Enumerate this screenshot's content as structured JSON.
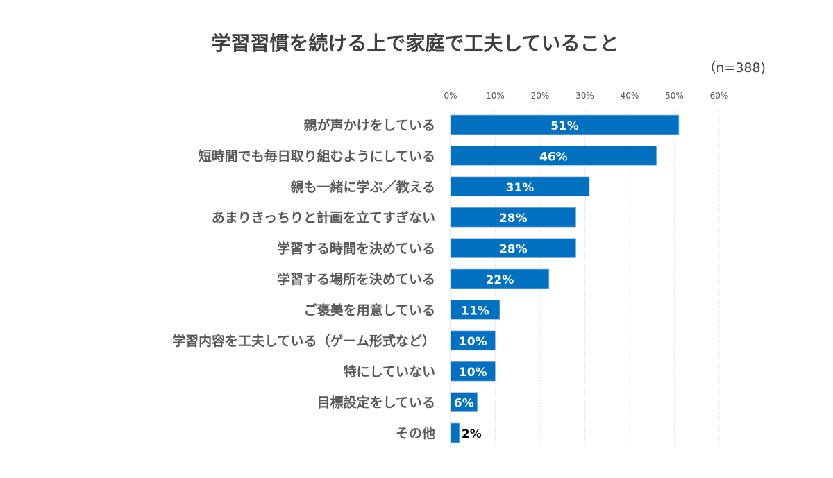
{
  "chart_data": {
    "type": "bar",
    "orientation": "horizontal",
    "title": "学習習慣を続ける上で家庭で工夫していること",
    "subtitle": "（n=388)",
    "categories": [
      "親が声かけをしている",
      "短時間でも毎日取り組むようにしている",
      "親も一緒に学ぶ／教える",
      "あまりきっちりと計画を立てすぎない",
      "学習する時間を決めている",
      "学習する場所を決めている",
      "ご褒美を用意している",
      "学習内容を工夫している（ゲーム形式など）",
      "特にしていない",
      "目標設定をしている",
      "その他"
    ],
    "values": [
      51,
      46,
      31,
      28,
      28,
      22,
      11,
      10,
      10,
      6,
      2
    ],
    "data_labels": [
      "51%",
      "46%",
      "31%",
      "28%",
      "28%",
      "22%",
      "11%",
      "10%",
      "10%",
      "6%",
      "2%"
    ],
    "xlim": [
      0,
      60
    ],
    "x_ticks": [
      "0%",
      "10%",
      "20%",
      "30%",
      "40%",
      "50%",
      "60%"
    ],
    "axis_position": "top",
    "grid": true,
    "bar_color": "#0070C0",
    "xlabel": "",
    "ylabel": ""
  }
}
